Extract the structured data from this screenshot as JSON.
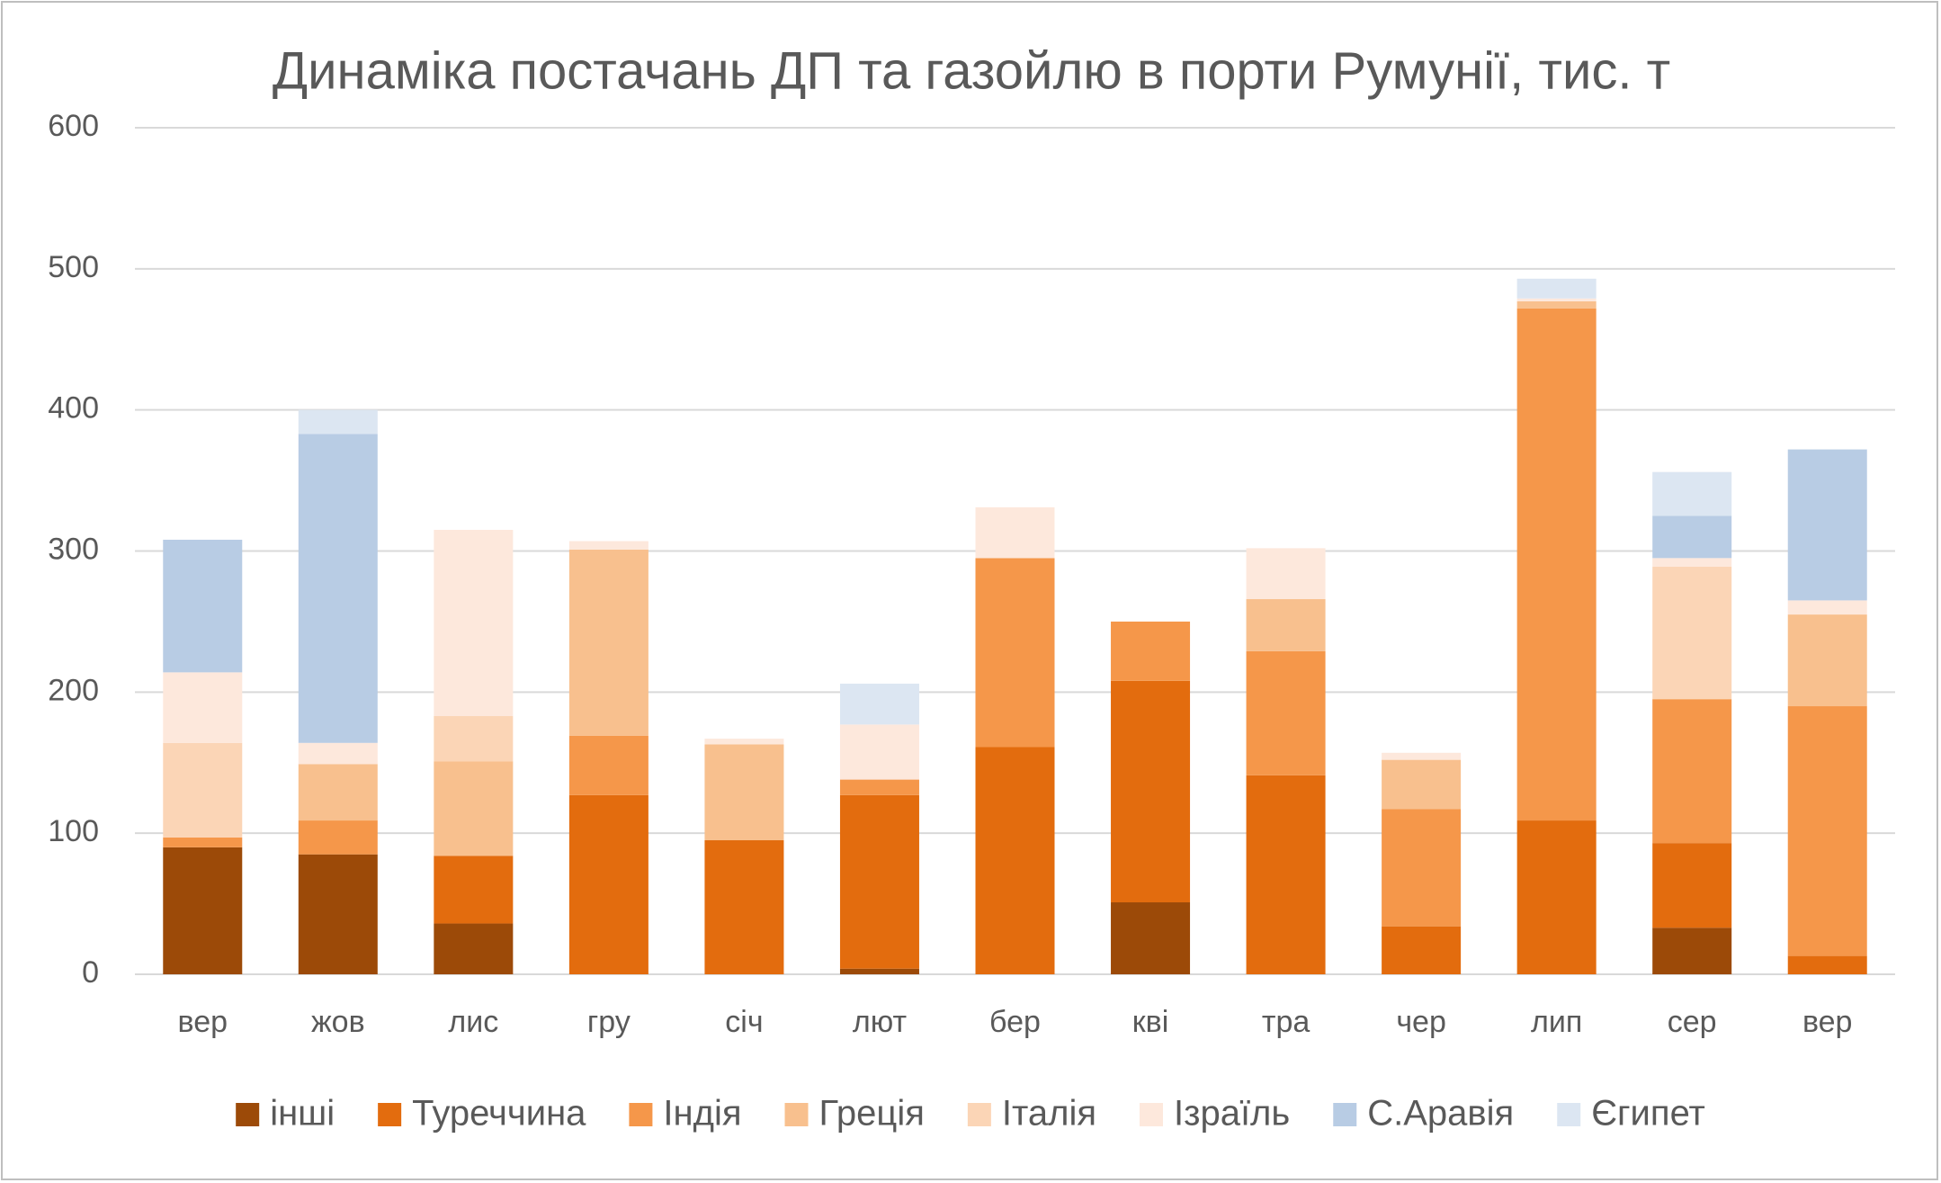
{
  "chart_data": {
    "type": "stacked_bar",
    "title": "Динаміка постачань ДП та газойлю в порти Румунії, тис. т",
    "categories": [
      "вер",
      "жов",
      "лис",
      "гру",
      "січ",
      "лют",
      "бер",
      "кві",
      "тра",
      "чер",
      "лип",
      "сер",
      "вер"
    ],
    "series": [
      {
        "name": "інші",
        "color": "#9c4a08",
        "values": [
          90,
          85,
          36,
          0,
          0,
          4,
          0,
          51,
          0,
          0,
          0,
          33,
          0
        ]
      },
      {
        "name": "Туреччина",
        "color": "#e36c0e",
        "values": [
          0,
          0,
          48,
          127,
          95,
          123,
          161,
          157,
          141,
          34,
          109,
          60,
          13
        ]
      },
      {
        "name": "Індія",
        "color": "#f5974a",
        "values": [
          7,
          24,
          0,
          42,
          0,
          11,
          134,
          42,
          88,
          83,
          363,
          102,
          177
        ]
      },
      {
        "name": "Греція",
        "color": "#f8c08e",
        "values": [
          0,
          40,
          67,
          132,
          68,
          0,
          0,
          0,
          37,
          35,
          5,
          0,
          65
        ]
      },
      {
        "name": "Італія",
        "color": "#fbd5b6",
        "values": [
          67,
          0,
          32,
          0,
          0,
          0,
          0,
          0,
          0,
          0,
          0,
          94,
          0
        ]
      },
      {
        "name": "Ізраїль",
        "color": "#fde8dc",
        "values": [
          50,
          15,
          132,
          6,
          4,
          39,
          36,
          0,
          36,
          5,
          2,
          6,
          10
        ]
      },
      {
        "name": "С.Аравія",
        "color": "#b8cce4",
        "values": [
          94,
          219,
          0,
          0,
          0,
          0,
          0,
          0,
          0,
          0,
          0,
          30,
          107
        ]
      },
      {
        "name": "Єгипет",
        "color": "#dce6f2",
        "values": [
          0,
          17,
          0,
          0,
          0,
          29,
          0,
          0,
          0,
          0,
          14,
          31,
          0
        ]
      }
    ],
    "ylim": [
      0,
      600
    ],
    "yticks": [
      0,
      100,
      200,
      300,
      400,
      500,
      600
    ],
    "grid": true
  }
}
